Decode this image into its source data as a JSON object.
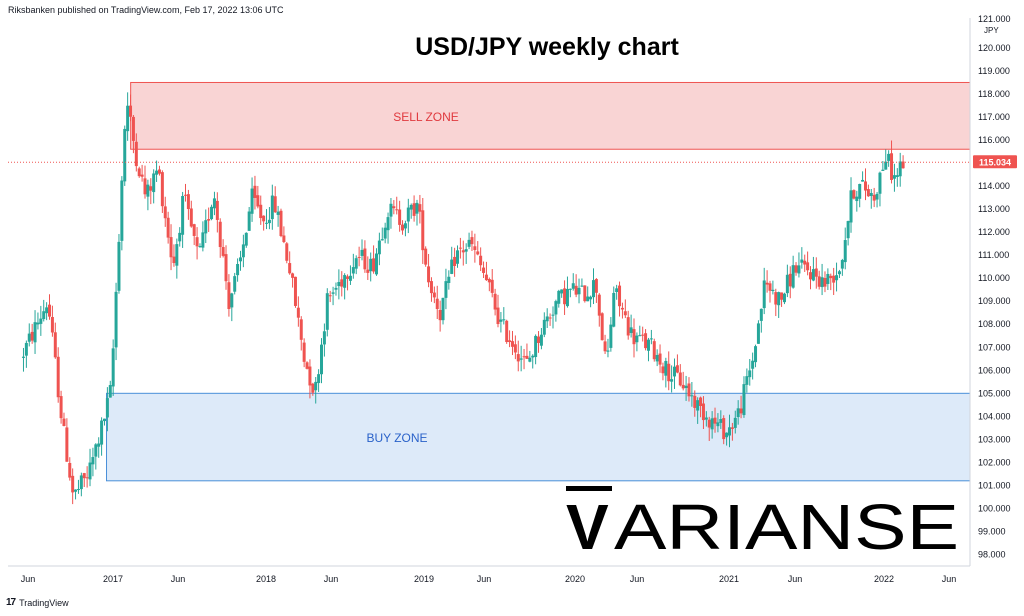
{
  "header": {
    "publisher": "Riksbanken published on TradingView.com, Feb 17, 2022 13:06 UTC"
  },
  "footer": {
    "brand": "TradingView",
    "brand_icon": "tradingview-logo-icon"
  },
  "watermark": {
    "text": "ARIANSE",
    "prefix_letter": "V"
  },
  "colors": {
    "up": "#26a69a",
    "down": "#ef5350",
    "sell_zone_fill": "#f8c9c9",
    "sell_zone_line": "#ef5350",
    "buy_zone_fill": "#d5e5f8",
    "buy_zone_line": "#4a90d9",
    "price_tag": "#ef5350"
  },
  "chart_data": {
    "type": "candlestick",
    "title": "USD/JPY weekly chart",
    "y_axis": {
      "unit_label": "JPY",
      "top_label": "121.000",
      "ticks": [
        "120.000",
        "119.000",
        "118.000",
        "117.000",
        "116.000",
        "115.000",
        "114.000",
        "113.000",
        "112.000",
        "111.000",
        "110.000",
        "109.000",
        "108.000",
        "107.000",
        "106.000",
        "105.000",
        "104.000",
        "103.000",
        "102.000",
        "101.000",
        "100.000",
        "99.000",
        "98.000"
      ],
      "ylim": [
        97.5,
        121.3
      ]
    },
    "x_axis": {
      "labels": [
        "Jun",
        "2017",
        "Jun",
        "2018",
        "Jun",
        "2019",
        "Jun",
        "2020",
        "Jun",
        "2021",
        "Jun",
        "2022",
        "Jun"
      ]
    },
    "last_price": "115.034",
    "zones": [
      {
        "label": "SELL ZONE",
        "from": 115.6,
        "to": 118.5
      },
      {
        "label": "BUY ZONE",
        "from": 101.2,
        "to": 105.0
      }
    ],
    "series_path": [
      [
        2016.27,
        106.5
      ],
      [
        2016.45,
        109.0
      ],
      [
        2016.55,
        103.5
      ],
      [
        2016.62,
        100.5
      ],
      [
        2016.72,
        101.5
      ],
      [
        2016.82,
        103.8
      ],
      [
        2016.87,
        105.2
      ],
      [
        2016.93,
        113.0
      ],
      [
        2016.97,
        117.8
      ],
      [
        2017.03,
        115.5
      ],
      [
        2017.1,
        113.5
      ],
      [
        2017.18,
        114.8
      ],
      [
        2017.28,
        110.5
      ],
      [
        2017.35,
        113.5
      ],
      [
        2017.45,
        110.8
      ],
      [
        2017.55,
        113.8
      ],
      [
        2017.65,
        109.0
      ],
      [
        2017.72,
        110.5
      ],
      [
        2017.8,
        113.5
      ],
      [
        2017.88,
        112.5
      ],
      [
        2017.95,
        113.3
      ],
      [
        2018.05,
        110.5
      ],
      [
        2018.15,
        106.5
      ],
      [
        2018.22,
        105.0
      ],
      [
        2018.3,
        109.0
      ],
      [
        2018.4,
        110.0
      ],
      [
        2018.5,
        111.0
      ],
      [
        2018.6,
        110.5
      ],
      [
        2018.7,
        113.0
      ],
      [
        2018.8,
        112.5
      ],
      [
        2018.9,
        113.2
      ],
      [
        2018.97,
        110.0
      ],
      [
        2019.05,
        108.5
      ],
      [
        2019.15,
        111.0
      ],
      [
        2019.25,
        111.5
      ],
      [
        2019.35,
        110.0
      ],
      [
        2019.45,
        108.0
      ],
      [
        2019.55,
        107.0
      ],
      [
        2019.62,
        106.2
      ],
      [
        2019.72,
        107.8
      ],
      [
        2019.82,
        109.0
      ],
      [
        2019.92,
        109.5
      ],
      [
        2020.0,
        109.3
      ],
      [
        2020.08,
        109.8
      ],
      [
        2020.15,
        106.0
      ],
      [
        2020.2,
        109.5
      ],
      [
        2020.32,
        107.5
      ],
      [
        2020.45,
        107.0
      ],
      [
        2020.55,
        106.0
      ],
      [
        2020.65,
        105.5
      ],
      [
        2020.75,
        104.5
      ],
      [
        2020.85,
        103.8
      ],
      [
        2020.95,
        103.3
      ],
      [
        2021.03,
        104.2
      ],
      [
        2021.12,
        106.5
      ],
      [
        2021.2,
        109.8
      ],
      [
        2021.3,
        109.0
      ],
      [
        2021.4,
        110.5
      ],
      [
        2021.5,
        110.3
      ],
      [
        2021.6,
        109.8
      ],
      [
        2021.7,
        110.5
      ],
      [
        2021.78,
        113.8
      ],
      [
        2021.85,
        114.0
      ],
      [
        2021.92,
        113.5
      ],
      [
        2022.0,
        115.3
      ],
      [
        2022.06,
        114.3
      ],
      [
        2022.11,
        115.03
      ]
    ]
  }
}
